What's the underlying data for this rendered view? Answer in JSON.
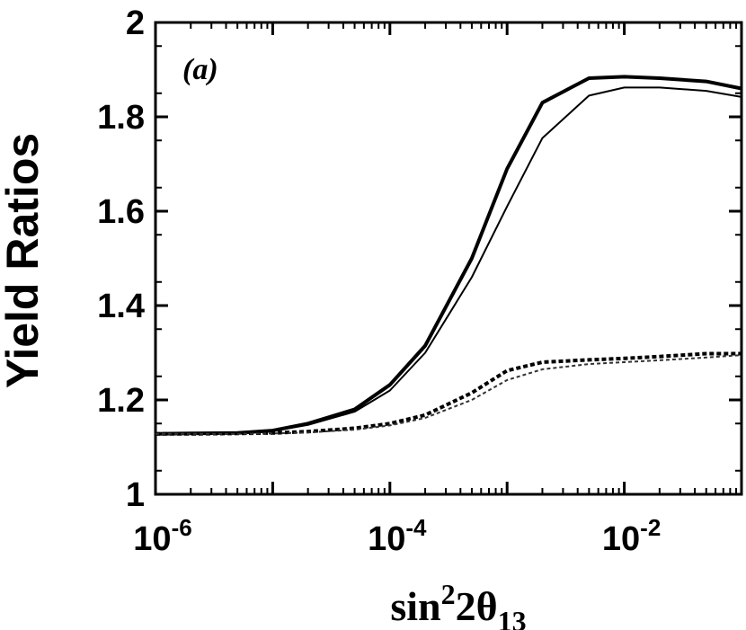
{
  "chart_data": {
    "type": "line",
    "panel_label": "(a)",
    "ylabel": "Yield Ratios",
    "xlabel": {
      "base": "sin",
      "sup": "2",
      "mid": "2θ",
      "sub": "13"
    },
    "xscale": "log",
    "xlim": [
      1e-06,
      0.1
    ],
    "ylim": [
      1.0,
      2.0
    ],
    "x_ticks": [
      {
        "value": 1e-06,
        "base": "10",
        "exp": "-6"
      },
      {
        "value": 0.0001,
        "base": "10",
        "exp": "-4"
      },
      {
        "value": 0.01,
        "base": "10",
        "exp": "-2"
      }
    ],
    "y_ticks": [
      {
        "value": 1.0,
        "label": "1"
      },
      {
        "value": 1.2,
        "label": "1.2"
      },
      {
        "value": 1.4,
        "label": "1.4"
      },
      {
        "value": 1.6,
        "label": "1.6"
      },
      {
        "value": 1.8,
        "label": "1.8"
      },
      {
        "value": 2.0,
        "label": "2"
      }
    ],
    "x": [
      1e-06,
      2e-06,
      5e-06,
      1e-05,
      2e-05,
      5e-05,
      0.0001,
      0.0002,
      0.0005,
      0.001,
      0.002,
      0.005,
      0.01,
      0.02,
      0.05,
      0.1
    ],
    "series": [
      {
        "name": "solid-thick",
        "style": "solid",
        "width": "thick",
        "values": [
          1.128,
          1.129,
          1.13,
          1.135,
          1.15,
          1.18,
          1.232,
          1.315,
          1.5,
          1.69,
          1.83,
          1.882,
          1.885,
          1.882,
          1.875,
          1.86
        ]
      },
      {
        "name": "solid-thin",
        "style": "solid",
        "width": "thin",
        "values": [
          1.128,
          1.129,
          1.13,
          1.134,
          1.147,
          1.175,
          1.22,
          1.3,
          1.46,
          1.61,
          1.755,
          1.845,
          1.862,
          1.862,
          1.855,
          1.842
        ]
      },
      {
        "name": "dashed-thick",
        "style": "dashed",
        "width": "thick",
        "values": [
          1.128,
          1.128,
          1.129,
          1.13,
          1.133,
          1.14,
          1.15,
          1.168,
          1.215,
          1.262,
          1.28,
          1.285,
          1.288,
          1.292,
          1.298,
          1.298
        ]
      },
      {
        "name": "dashed-thin",
        "style": "dashed",
        "width": "thin",
        "values": [
          1.128,
          1.128,
          1.128,
          1.129,
          1.131,
          1.137,
          1.146,
          1.162,
          1.2,
          1.242,
          1.265,
          1.276,
          1.28,
          1.284,
          1.29,
          1.295
        ]
      }
    ]
  }
}
